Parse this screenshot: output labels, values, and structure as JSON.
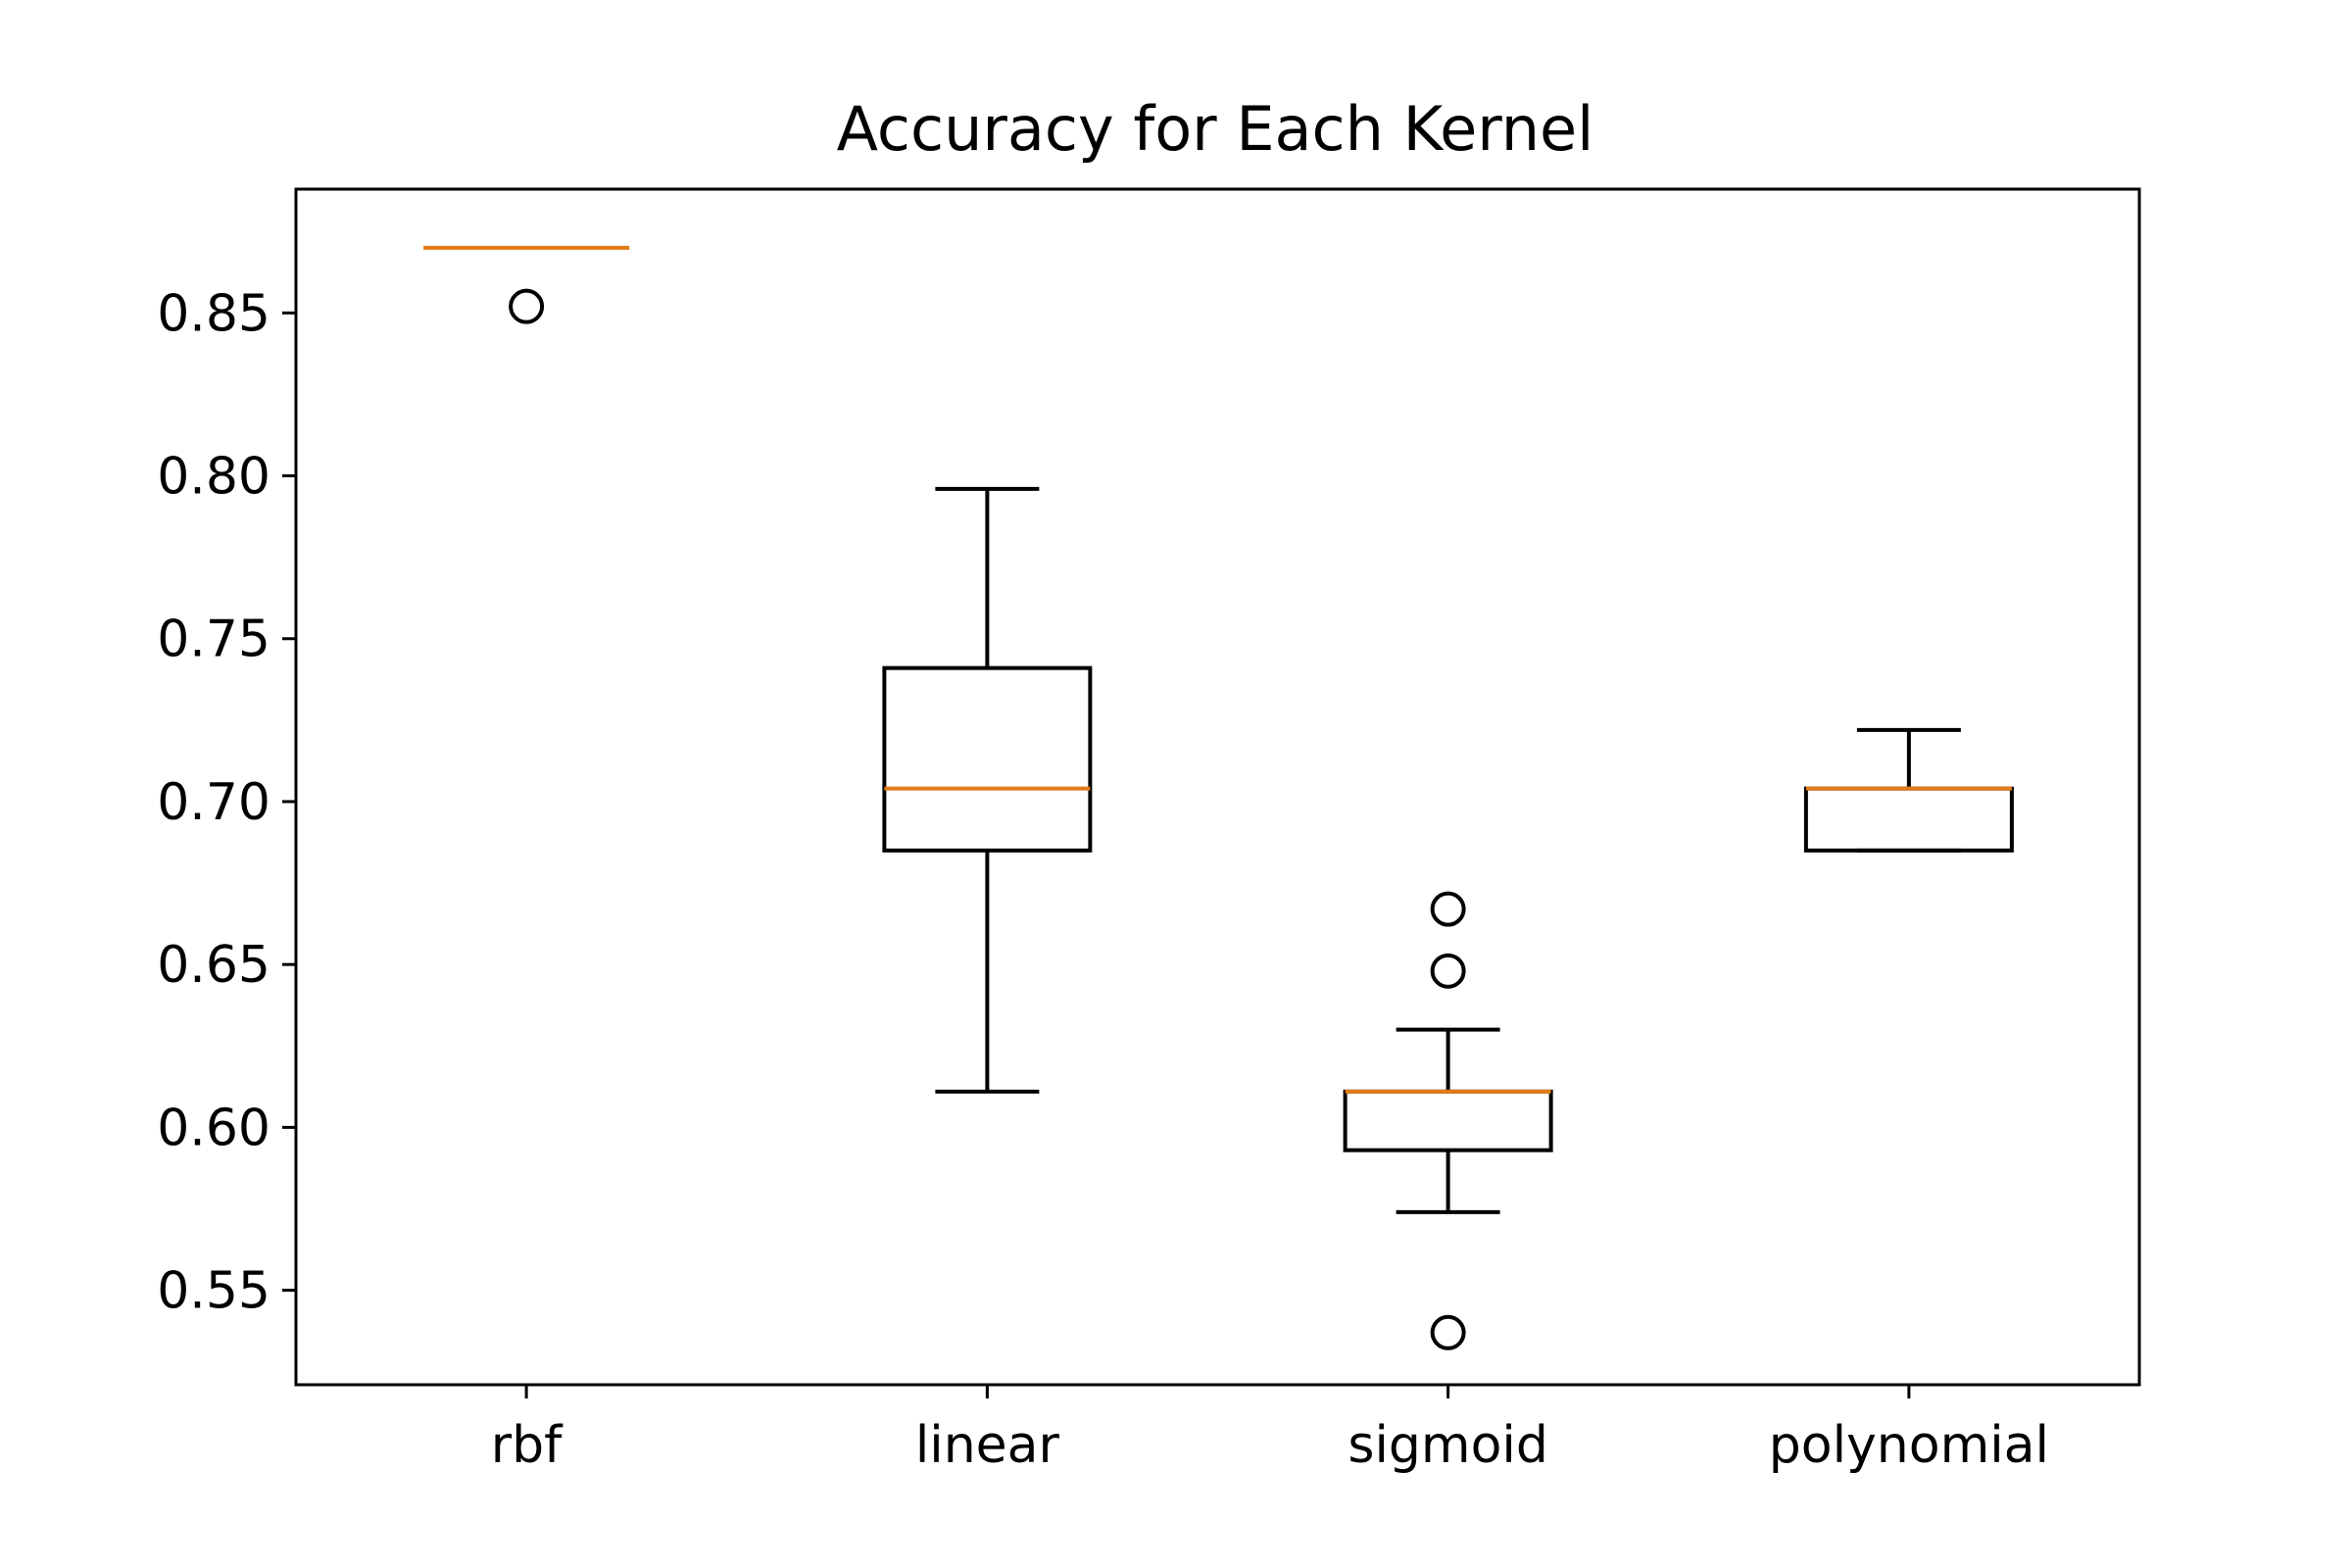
{
  "chart_data": {
    "type": "boxplot",
    "title": "Accuracy for Each Kernel",
    "xlabel": "",
    "ylabel": "",
    "categories": [
      "rbf",
      "linear",
      "sigmoid",
      "polynomial"
    ],
    "ylim": [
      0.521,
      0.888
    ],
    "yticks": [
      0.55,
      0.6,
      0.65,
      0.7,
      0.75,
      0.8,
      0.85
    ],
    "ytick_labels": [
      "0.55",
      "0.60",
      "0.65",
      "0.70",
      "0.75",
      "0.80",
      "0.85"
    ],
    "grid": false,
    "boxes": [
      {
        "category": "rbf",
        "whisker_low": 0.87,
        "q1": 0.87,
        "median": 0.87,
        "q3": 0.87,
        "whisker_high": 0.87,
        "outliers": [
          0.852
        ]
      },
      {
        "category": "linear",
        "whisker_low": 0.611,
        "q1": 0.685,
        "median": 0.704,
        "q3": 0.741,
        "whisker_high": 0.796,
        "outliers": []
      },
      {
        "category": "sigmoid",
        "whisker_low": 0.574,
        "q1": 0.593,
        "median": 0.611,
        "q3": 0.611,
        "whisker_high": 0.63,
        "outliers": [
          0.537,
          0.648,
          0.667
        ]
      },
      {
        "category": "polynomial",
        "whisker_low": 0.685,
        "q1": 0.685,
        "median": 0.704,
        "q3": 0.704,
        "whisker_high": 0.722,
        "outliers": []
      }
    ],
    "colors": {
      "box": "#000000",
      "median": "#e07b17"
    }
  }
}
